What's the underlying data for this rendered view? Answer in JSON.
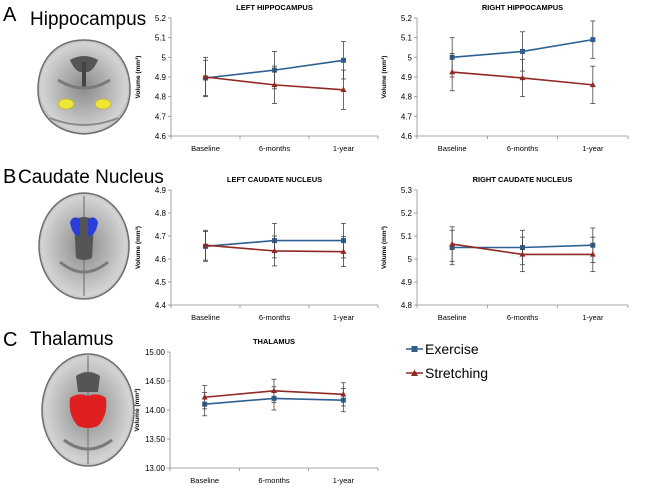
{
  "panels": [
    {
      "letter": "A",
      "region": "Hippocampus"
    },
    {
      "letter": "B",
      "region": "Caudate Nucleus"
    },
    {
      "letter": "C",
      "region": "Thalamus"
    }
  ],
  "legend": [
    {
      "name": "Exercise",
      "color": "#2e5f8f",
      "marker": "square"
    },
    {
      "name": "Stretching",
      "color": "#8f2a24",
      "marker": "triangle"
    }
  ],
  "chart_data": [
    {
      "type": "line",
      "title": "LEFT HIPPOCAMPUS",
      "categories": [
        "Baseline",
        "6-months",
        "1-year"
      ],
      "xlabel": "",
      "ylabel": "Volume (mm³)",
      "ylim": [
        4.6,
        5.2
      ],
      "yticks": [
        "4.6",
        "4.7",
        "4.8",
        "4.9",
        "5",
        "5.1",
        "5.2"
      ],
      "series": [
        {
          "name": "Exercise",
          "values": [
            4.895,
            4.935,
            4.985
          ],
          "err": [
            0.09,
            0.095,
            0.095
          ]
        },
        {
          "name": "Stretching",
          "values": [
            4.9,
            4.86,
            4.835
          ],
          "err": [
            0.1,
            0.095,
            0.1
          ]
        }
      ]
    },
    {
      "type": "line",
      "title": "RIGHT HIPPOCAMPUS",
      "categories": [
        "Baseline",
        "6-months",
        "1-year"
      ],
      "xlabel": "",
      "ylabel": "Volume (mm³)",
      "ylim": [
        4.6,
        5.2
      ],
      "yticks": [
        "4.6",
        "4.7",
        "4.8",
        "4.9",
        "5",
        "5.1",
        "5.2"
      ],
      "series": [
        {
          "name": "Exercise",
          "values": [
            5.0,
            5.03,
            5.09
          ],
          "err": [
            0.1,
            0.1,
            0.095
          ]
        },
        {
          "name": "Stretching",
          "values": [
            4.925,
            4.895,
            4.86
          ],
          "err": [
            0.095,
            0.095,
            0.095
          ]
        }
      ]
    },
    {
      "type": "line",
      "title": "LEFT CAUDATE NUCLEUS",
      "categories": [
        "Baseline",
        "6-months",
        "1-year"
      ],
      "xlabel": "",
      "ylabel": "Volume (mm³)",
      "ylim": [
        4.4,
        4.9
      ],
      "yticks": [
        "4.4",
        "4.5",
        "4.6",
        "4.7",
        "4.8",
        "4.9"
      ],
      "series": [
        {
          "name": "Exercise",
          "values": [
            4.655,
            4.68,
            4.68
          ],
          "err": [
            0.065,
            0.075,
            0.075
          ]
        },
        {
          "name": "Stretching",
          "values": [
            4.66,
            4.635,
            4.632
          ],
          "err": [
            0.065,
            0.065,
            0.065
          ]
        }
      ]
    },
    {
      "type": "line",
      "title": "RIGHT CAUDATE NUCLEUS",
      "categories": [
        "Baseline",
        "6-months",
        "1-year"
      ],
      "xlabel": "",
      "ylabel": "Volume (mm³)",
      "ylim": [
        4.8,
        5.3
      ],
      "yticks": [
        "4.8",
        "4.9",
        "5",
        "5.1",
        "5.2",
        "5.3"
      ],
      "series": [
        {
          "name": "Exercise",
          "values": [
            5.05,
            5.05,
            5.06
          ],
          "err": [
            0.075,
            0.075,
            0.075
          ]
        },
        {
          "name": "Stretching",
          "values": [
            5.065,
            5.02,
            5.02
          ],
          "err": [
            0.075,
            0.075,
            0.075
          ]
        }
      ]
    },
    {
      "type": "line",
      "title": "THALAMUS",
      "categories": [
        "Baseline",
        "6-months",
        "1-year"
      ],
      "xlabel": "",
      "ylabel": "Volume (mm³)",
      "ylim": [
        13.0,
        15.0
      ],
      "yticks": [
        "13.00",
        "13.50",
        "14.00",
        "14.50",
        "15.00"
      ],
      "series": [
        {
          "name": "Exercise",
          "values": [
            14.1,
            14.2,
            14.17
          ],
          "err": [
            0.2,
            0.2,
            0.2
          ]
        },
        {
          "name": "Stretching",
          "values": [
            14.22,
            14.33,
            14.27
          ],
          "err": [
            0.2,
            0.2,
            0.2
          ]
        }
      ]
    }
  ]
}
